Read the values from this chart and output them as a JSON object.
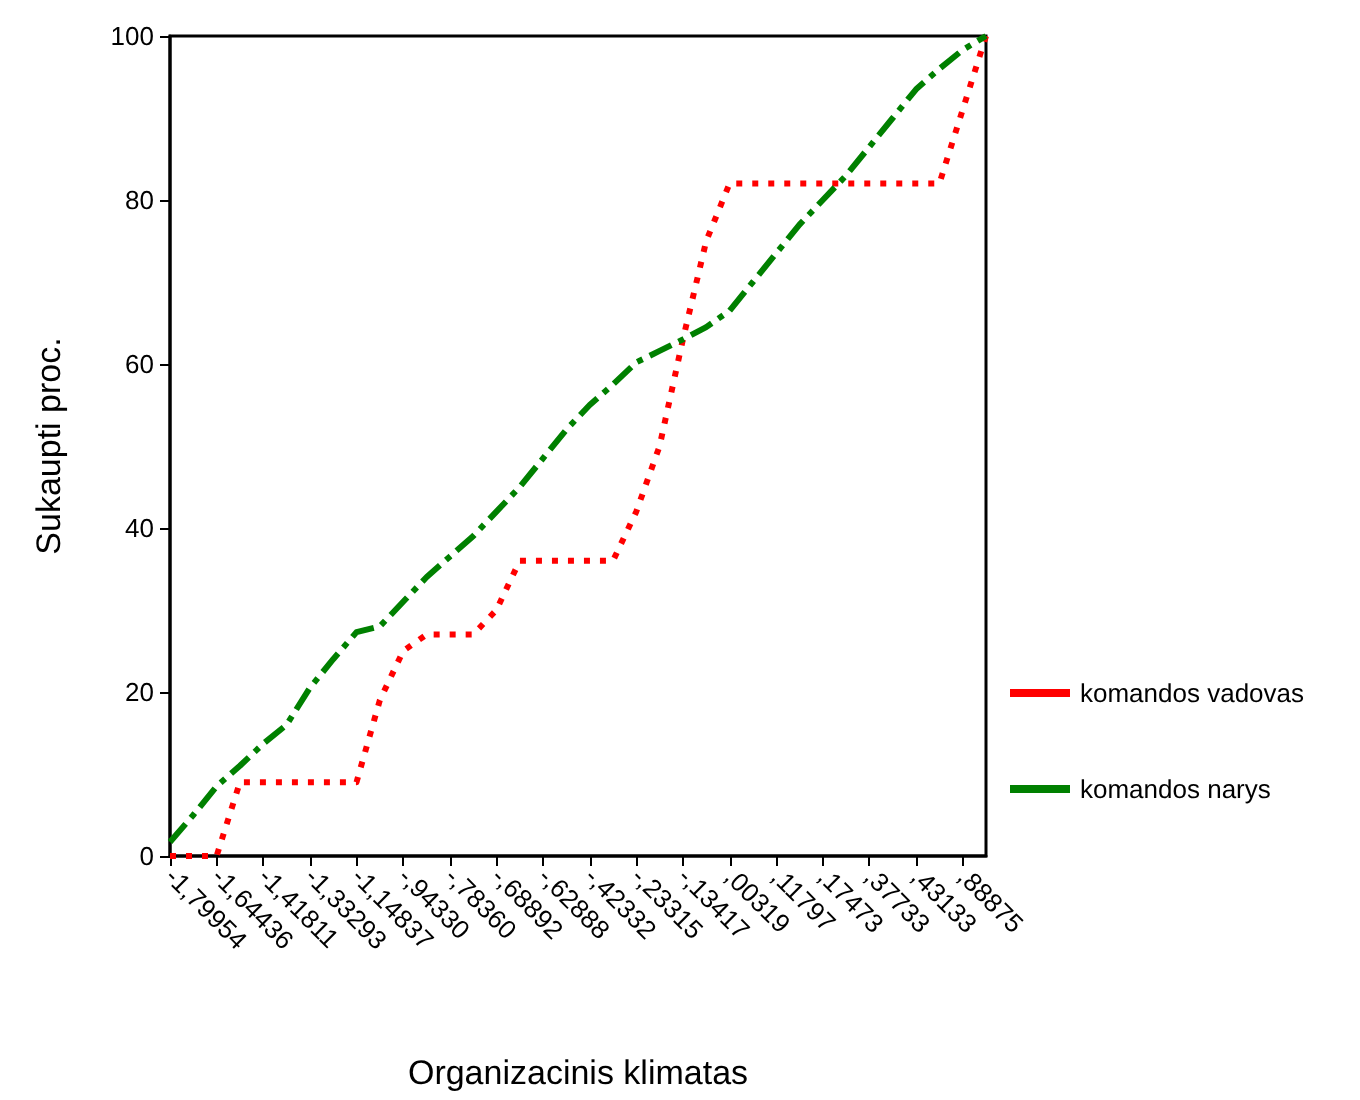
{
  "chart_data": {
    "type": "line",
    "xlabel": "Organizacinis klimatas",
    "ylabel": "Sukaupti proc.",
    "categories": [
      "-1,79954",
      null,
      "-1,64436",
      null,
      "-1,41811",
      null,
      "-1,33293",
      null,
      "-1,14837",
      null,
      "-,94330",
      null,
      "-,78360",
      null,
      "-,68892",
      null,
      "-,62888",
      null,
      "-,42332",
      null,
      "-,23315",
      null,
      "-,13417",
      null,
      ",00319",
      null,
      ",11797",
      null,
      ",17473",
      null,
      ",37733",
      null,
      ",43133",
      null,
      ",88875",
      null
    ],
    "ylim": [
      0,
      100
    ],
    "yticks": [
      0,
      20,
      40,
      60,
      80,
      100
    ],
    "grid": false,
    "legend": "right",
    "marker": "none",
    "series": [
      {
        "name": "komandos vadovas",
        "color": "#ff0000",
        "line_style": "dotted",
        "values": [
          0,
          0,
          0,
          9,
          9,
          9,
          9,
          9,
          9,
          19,
          25,
          27,
          27,
          27,
          30,
          36,
          36,
          36,
          36,
          36,
          42,
          50,
          63,
          75,
          82,
          82,
          82,
          82,
          82,
          82,
          82,
          82,
          82,
          82,
          91,
          100
        ]
      },
      {
        "name": "komandos narys",
        "color": "#008000",
        "line_style": "dashed",
        "values": [
          1.7,
          5,
          8.5,
          11,
          13.7,
          16,
          20.5,
          24,
          27.3,
          28,
          31,
          34,
          36.5,
          39,
          42,
          45,
          48.5,
          52,
          55,
          57.5,
          60.2,
          61.6,
          63,
          64.5,
          66.5,
          70,
          73.5,
          77,
          80,
          83,
          86.5,
          90,
          93.5,
          96,
          98.3,
          100
        ]
      }
    ]
  }
}
